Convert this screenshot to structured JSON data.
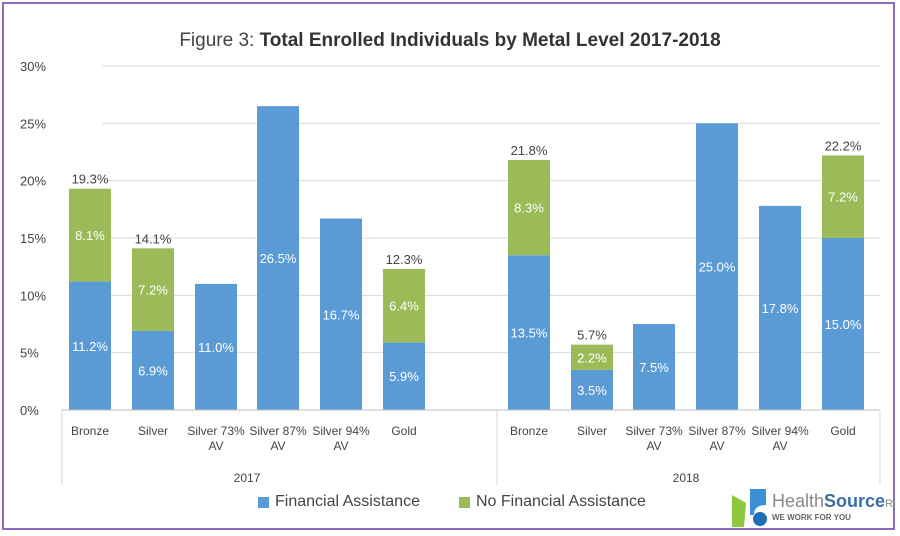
{
  "chart_data": {
    "type": "bar",
    "stacked": true,
    "title_prefix": "Figure 3: ",
    "title": "Total Enrolled Individuals by Metal Level 2017-2018",
    "xlabel": "",
    "ylabel": "",
    "ylim": [
      0,
      30
    ],
    "yticks": [
      "0%",
      "5%",
      "10%",
      "15%",
      "20%",
      "25%",
      "30%"
    ],
    "grid": true,
    "legend_position": "bottom",
    "groups": [
      {
        "label": "2017",
        "categories": [
          "Bronze",
          "Silver",
          "Silver 73% AV",
          "Silver 87% AV",
          "Silver 94% AV",
          "Gold"
        ],
        "financial_assistance": [
          11.2,
          6.9,
          11.0,
          26.5,
          16.7,
          5.9
        ],
        "no_financial_assistance": [
          8.1,
          7.2,
          null,
          null,
          null,
          6.4
        ],
        "totals": [
          19.3,
          14.1,
          null,
          null,
          null,
          12.3
        ]
      },
      {
        "label": "2018",
        "categories": [
          "Bronze",
          "Silver",
          "Silver 73% AV",
          "Silver 87% AV",
          "Silver 94% AV",
          "Gold"
        ],
        "financial_assistance": [
          13.5,
          3.5,
          7.5,
          25.0,
          17.8,
          15.0
        ],
        "no_financial_assistance": [
          8.3,
          2.2,
          null,
          null,
          null,
          7.2
        ],
        "totals": [
          21.8,
          5.7,
          null,
          null,
          null,
          22.2
        ]
      }
    ],
    "series": [
      {
        "name": "Financial Assistance",
        "color": "#5b9bd5"
      },
      {
        "name": "No Financial Assistance",
        "color": "#9bbb59"
      }
    ]
  },
  "logo": {
    "name_light": "Health",
    "name_bold": "Source",
    "suffix": "RI",
    "tagline": "WE WORK FOR YOU"
  }
}
